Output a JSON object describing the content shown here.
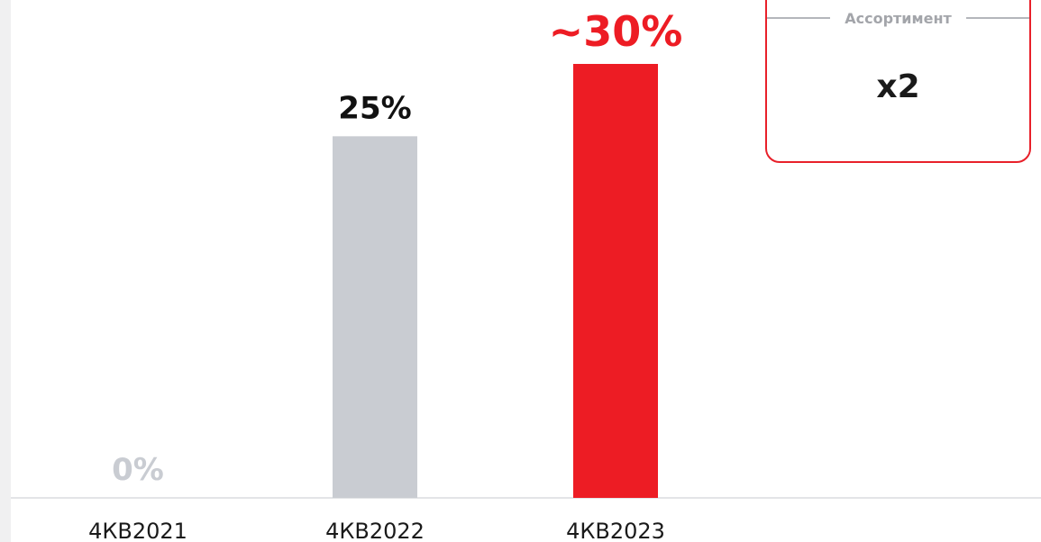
{
  "chart_data": {
    "type": "bar",
    "categories": [
      "4КВ2021",
      "4КВ2022",
      "4КВ2023"
    ],
    "values": [
      0,
      25,
      30
    ],
    "data_labels": [
      "0%",
      "25%",
      "~30%"
    ],
    "bar_colors": [
      "#c9ccd2",
      "#c9ccd2",
      "#ed1c24"
    ],
    "label_colors": [
      "#c9ccd2",
      "#111111",
      "#ed1c24"
    ],
    "ylim": [
      0,
      30
    ],
    "grid": false,
    "legend": "none"
  },
  "callout": {
    "title": "Ассортимент",
    "value": "x2",
    "border_color": "#e8202a"
  }
}
